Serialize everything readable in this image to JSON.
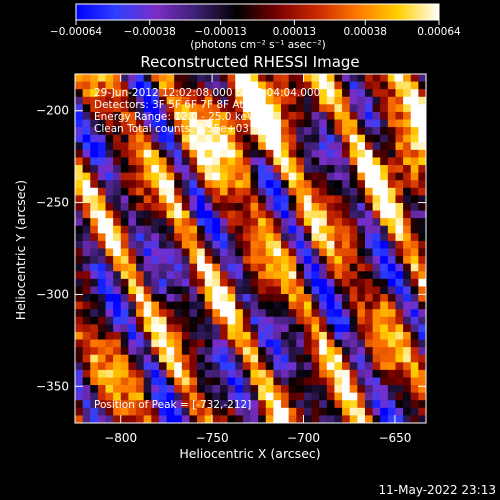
{
  "chart_data": {
    "type": "heatmap",
    "title": "Reconstructed RHESSI Image",
    "xlabel": "Heliocentric X (arcsec)",
    "ylabel": "Heliocentric Y (arcsec)",
    "xlim": [
      -825,
      -633
    ],
    "ylim": [
      -370,
      -180
    ],
    "xticks": [
      {
        "value": -800,
        "label": "−800"
      },
      {
        "value": -750,
        "label": "−750"
      },
      {
        "value": -700,
        "label": "−700"
      },
      {
        "value": -650,
        "label": "−650"
      }
    ],
    "yticks": [
      {
        "value": -200,
        "label": "−200"
      },
      {
        "value": -250,
        "label": "−250"
      },
      {
        "value": -300,
        "label": "−300"
      },
      {
        "value": -350,
        "label": "−350"
      }
    ],
    "colorbar": {
      "range": [
        -0.00064,
        0.00064
      ],
      "ticks": [
        {
          "value": -0.00064,
          "label": "−0.00064"
        },
        {
          "value": -0.00038,
          "label": "−0.00038"
        },
        {
          "value": -0.00013,
          "label": "−0.00013"
        },
        {
          "value": 0.00013,
          "label": "0.00013"
        },
        {
          "value": 0.00038,
          "label": "0.00038"
        },
        {
          "value": 0.00064,
          "label": "0.00064"
        }
      ],
      "unit": "(photons cm⁻² s⁻¹ asec⁻²)",
      "colormap": [
        "#0000ff",
        "#3040ff",
        "#7a2dc6",
        "#3b1f70",
        "#000000",
        "#7a0000",
        "#cc2a00",
        "#ff7a00",
        "#ffd000",
        "#ffffff"
      ]
    },
    "annotations": [
      "29-Jun-2012 12:02:08.000 to 12:04:04.000",
      "Detectors: 3F 5F 6F 7F 8F  Att 0",
      "Energy Range: 12.0 - 25.0 keV",
      "Clean     Total counts: 1.55e+03"
    ],
    "peak_label": "Position of Peak = [-732,-212]",
    "peak": [
      -732,
      -212
    ],
    "grid": false
  },
  "footer": {
    "timestamp": "11-May-2022 23:13"
  }
}
